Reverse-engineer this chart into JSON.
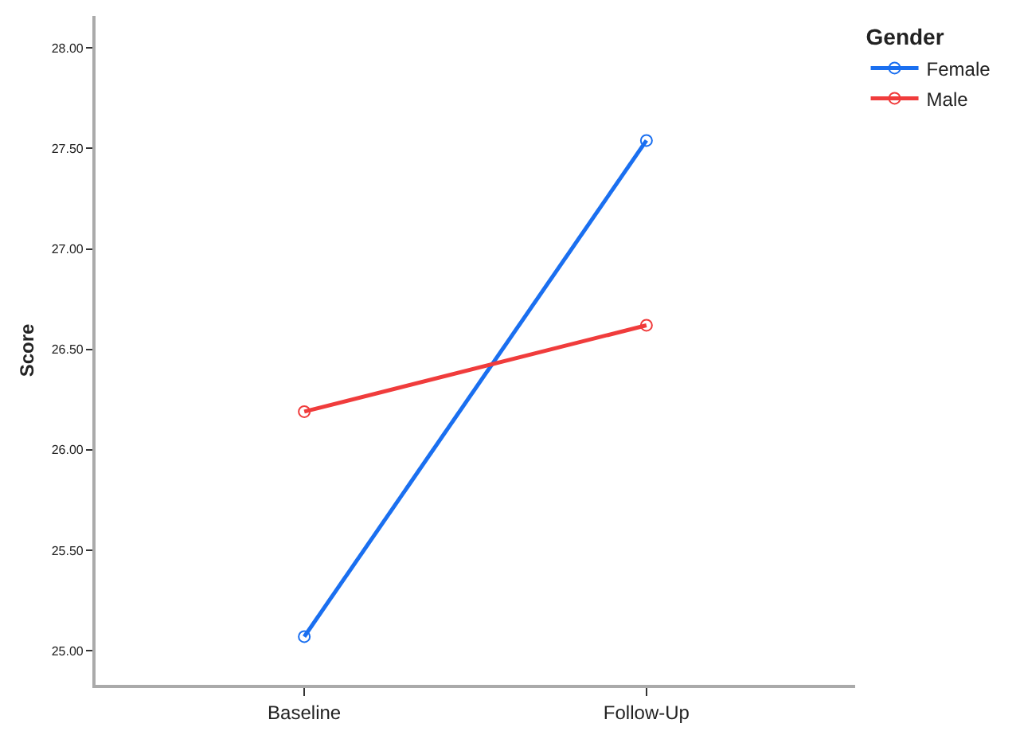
{
  "chart_data": {
    "type": "line",
    "ylabel": "Score",
    "legend_title": "Gender",
    "categories": [
      "Baseline",
      "Follow-Up"
    ],
    "series": [
      {
        "name": "Female",
        "color": "#1a6ff0",
        "values": [
          25.07,
          27.54
        ]
      },
      {
        "name": "Male",
        "color": "#f03c3c",
        "values": [
          26.19,
          26.62
        ]
      }
    ],
    "ylim": [
      24.83,
      28.16
    ],
    "yticks": [
      {
        "value": 25,
        "label": "25.00"
      },
      {
        "value": 25.5,
        "label": "25.50"
      },
      {
        "value": 26,
        "label": "26.00"
      },
      {
        "value": 26.5,
        "label": "26.50"
      },
      {
        "value": 27,
        "label": "27.00"
      },
      {
        "value": 27.5,
        "label": "27.50"
      },
      {
        "value": 28,
        "label": "28.00"
      }
    ],
    "legend": "top right",
    "marker": "circle",
    "line_style": "solid"
  }
}
